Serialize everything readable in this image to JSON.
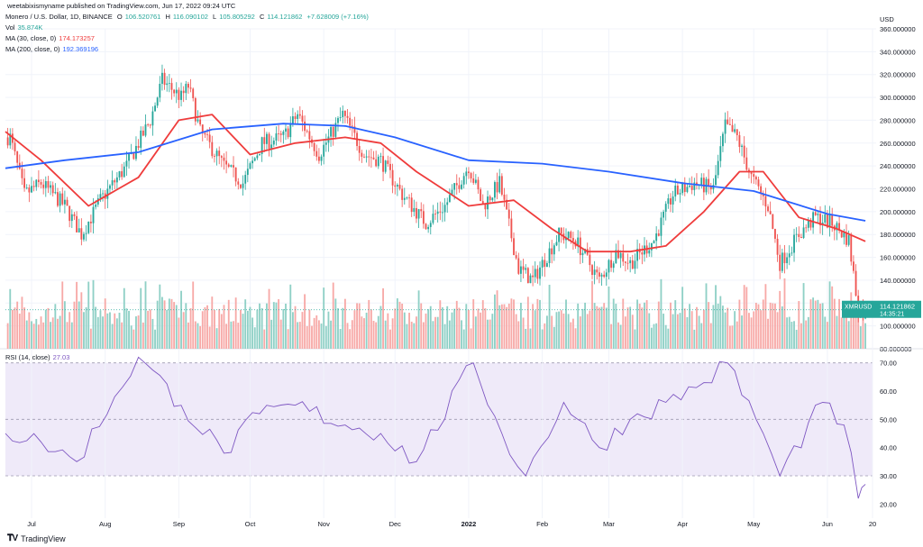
{
  "header": {
    "publisher": "weetabixismyname published on TradingView.com, Jun 17, 2022 09:24 UTC",
    "symbol": "Monero / U.S. Dollar, 1D, BINANCE",
    "ohlc": {
      "o_label": "O",
      "o": "106.520761",
      "h_label": "H",
      "h": "116.090102",
      "l_label": "L",
      "l": "105.805292",
      "c_label": "C",
      "c": "114.121862",
      "change": "+7.628009 (+7.16%)"
    },
    "vol_label": "Vol",
    "vol_value": "35.874K",
    "ma30_label": "MA (30, close, 0)",
    "ma30_value": "174.173257",
    "ma200_label": "MA (200, close, 0)",
    "ma200_value": "192.369196",
    "rsi_label": "RSI (14, close)",
    "rsi_value": "27.03"
  },
  "price_axis": {
    "currency": "USD",
    "ticks": [
      "360.000000",
      "340.000000",
      "320.000000",
      "300.000000",
      "280.000000",
      "260.000000",
      "240.000000",
      "220.000000",
      "200.000000",
      "180.000000",
      "160.000000",
      "140.000000",
      "120.000000",
      "100.000000",
      "80.000000"
    ],
    "last_price_label": "114.121862",
    "symbol_tag": "XMRUSD",
    "countdown": "14:35:21"
  },
  "rsi_axis": {
    "ticks": [
      "70.00",
      "60.00",
      "50.00",
      "40.00",
      "30.00",
      "20.00"
    ]
  },
  "time_axis": {
    "ticks": [
      "Jul",
      "Aug",
      "Sep",
      "Oct",
      "Nov",
      "Dec",
      "2022",
      "Feb",
      "Mar",
      "Apr",
      "May",
      "Jun",
      "20"
    ]
  },
  "footer": {
    "brand": "TradingView"
  },
  "colors": {
    "up": "#26a69a",
    "down": "#ef5350",
    "vol_up": "#8fd0c6",
    "vol_down": "#f7a9a7",
    "ma30": "#ef3c3c",
    "ma200": "#2962ff",
    "rsi": "#7e57c2",
    "rsi_band": "#efeaf9",
    "grid": "#f0f3fa",
    "axis_text": "#131722"
  },
  "chart_data": [
    {
      "type": "candlestick",
      "title": "Monero / U.S. Dollar, 1D, BINANCE",
      "ylabel": "USD",
      "ylim": [
        80,
        360
      ],
      "x_range": [
        "2021-06-20",
        "2022-06-20"
      ],
      "anchors": [
        [
          "2021-06-22",
          265
        ],
        [
          "2021-06-28",
          215
        ],
        [
          "2021-07-05",
          225
        ],
        [
          "2021-07-15",
          205
        ],
        [
          "2021-07-22",
          180
        ],
        [
          "2021-07-30",
          210
        ],
        [
          "2021-08-10",
          240
        ],
        [
          "2021-08-20",
          280
        ],
        [
          "2021-08-25",
          315
        ],
        [
          "2021-09-02",
          300
        ],
        [
          "2021-09-05",
          310
        ],
        [
          "2021-09-10",
          270
        ],
        [
          "2021-09-20",
          240
        ],
        [
          "2021-09-28",
          225
        ],
        [
          "2021-10-06",
          260
        ],
        [
          "2021-10-15",
          265
        ],
        [
          "2021-10-21",
          285
        ],
        [
          "2021-10-30",
          250
        ],
        [
          "2021-11-09",
          285
        ],
        [
          "2021-11-18",
          250
        ],
        [
          "2021-11-25",
          245
        ],
        [
          "2021-12-04",
          215
        ],
        [
          "2021-12-14",
          190
        ],
        [
          "2021-12-22",
          205
        ],
        [
          "2022-01-01",
          240
        ],
        [
          "2022-01-07",
          205
        ],
        [
          "2022-01-14",
          225
        ],
        [
          "2022-01-22",
          150
        ],
        [
          "2022-01-28",
          140
        ],
        [
          "2022-02-08",
          180
        ],
        [
          "2022-02-15",
          175
        ],
        [
          "2022-02-25",
          140
        ],
        [
          "2022-03-04",
          165
        ],
        [
          "2022-03-10",
          155
        ],
        [
          "2022-03-20",
          175
        ],
        [
          "2022-03-28",
          215
        ],
        [
          "2022-04-06",
          225
        ],
        [
          "2022-04-14",
          220
        ],
        [
          "2022-04-19",
          275
        ],
        [
          "2022-04-24",
          265
        ],
        [
          "2022-04-30",
          230
        ],
        [
          "2022-05-07",
          205
        ],
        [
          "2022-05-12",
          155
        ],
        [
          "2022-05-20",
          180
        ],
        [
          "2022-05-27",
          195
        ],
        [
          "2022-06-03",
          190
        ],
        [
          "2022-06-10",
          175
        ],
        [
          "2022-06-14",
          115
        ],
        [
          "2022-06-17",
          114
        ]
      ]
    },
    {
      "type": "line",
      "series": [
        {
          "name": "MA (30, close, 0)",
          "points": [
            [
              "2021-06-20",
              270
            ],
            [
              "2021-07-05",
              245
            ],
            [
              "2021-07-25",
              205
            ],
            [
              "2021-08-15",
              230
            ],
            [
              "2021-09-01",
              280
            ],
            [
              "2021-09-15",
              285
            ],
            [
              "2021-10-01",
              250
            ],
            [
              "2021-10-20",
              260
            ],
            [
              "2021-11-10",
              265
            ],
            [
              "2021-11-25",
              260
            ],
            [
              "2021-12-10",
              235
            ],
            [
              "2022-01-01",
              205
            ],
            [
              "2022-01-20",
              210
            ],
            [
              "2022-02-05",
              185
            ],
            [
              "2022-02-20",
              165
            ],
            [
              "2022-03-10",
              165
            ],
            [
              "2022-03-25",
              170
            ],
            [
              "2022-04-10",
              200
            ],
            [
              "2022-04-25",
              235
            ],
            [
              "2022-05-05",
              235
            ],
            [
              "2022-05-20",
              195
            ],
            [
              "2022-06-05",
              185
            ],
            [
              "2022-06-17",
              174
            ]
          ]
        },
        {
          "name": "MA (200, close, 0)",
          "points": [
            [
              "2021-06-20",
              238
            ],
            [
              "2021-07-15",
              245
            ],
            [
              "2021-08-15",
              252
            ],
            [
              "2021-09-15",
              272
            ],
            [
              "2021-10-15",
              277
            ],
            [
              "2021-11-10",
              275
            ],
            [
              "2021-12-01",
              265
            ],
            [
              "2022-01-01",
              245
            ],
            [
              "2022-02-01",
              242
            ],
            [
              "2022-03-01",
              235
            ],
            [
              "2022-04-01",
              225
            ],
            [
              "2022-05-01",
              218
            ],
            [
              "2022-06-01",
              198
            ],
            [
              "2022-06-17",
              192
            ]
          ]
        }
      ]
    },
    {
      "type": "line",
      "series": [
        {
          "name": "RSI (14, close)",
          "points": [
            [
              "2021-06-20",
              45
            ],
            [
              "2021-07-05",
              42
            ],
            [
              "2021-07-20",
              35
            ],
            [
              "2021-08-05",
              58
            ],
            [
              "2021-08-15",
              72
            ],
            [
              "2021-09-02",
              55
            ],
            [
              "2021-09-20",
              38
            ],
            [
              "2021-10-05",
              52
            ],
            [
              "2021-10-20",
              55
            ],
            [
              "2021-11-10",
              48
            ],
            [
              "2021-11-25",
              45
            ],
            [
              "2021-12-10",
              35
            ],
            [
              "2022-01-03",
              70
            ],
            [
              "2022-01-15",
              45
            ],
            [
              "2022-01-25",
              30
            ],
            [
              "2022-02-10",
              56
            ],
            [
              "2022-02-25",
              40
            ],
            [
              "2022-03-10",
              50
            ],
            [
              "2022-03-25",
              56
            ],
            [
              "2022-04-10",
              63
            ],
            [
              "2022-04-20",
              70
            ],
            [
              "2022-05-05",
              45
            ],
            [
              "2022-05-12",
              30
            ],
            [
              "2022-05-30",
              56
            ],
            [
              "2022-06-08",
              48
            ],
            [
              "2022-06-14",
              22
            ],
            [
              "2022-06-17",
              27
            ]
          ]
        }
      ],
      "ylim": [
        15,
        75
      ]
    }
  ]
}
